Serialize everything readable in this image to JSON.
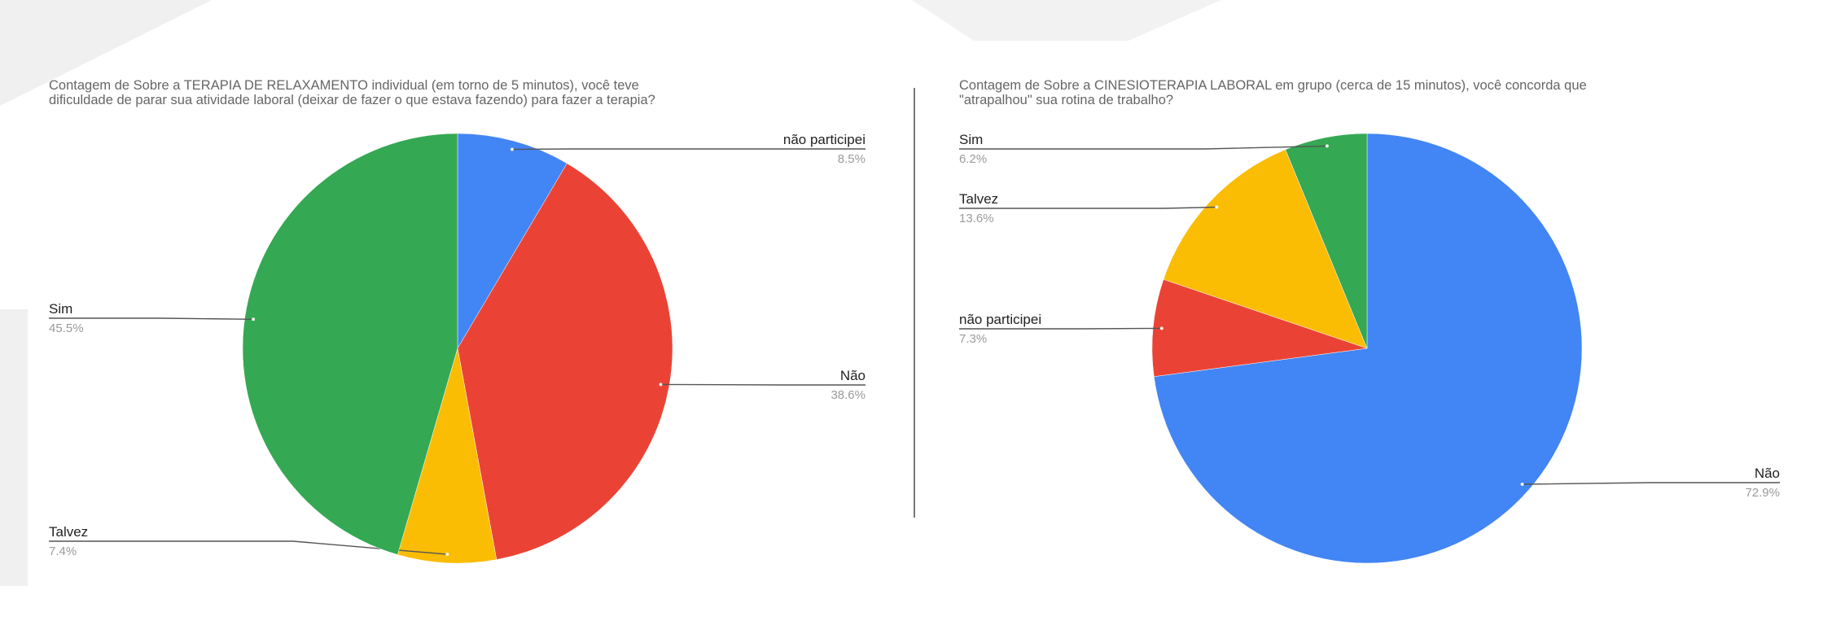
{
  "chart_data": [
    {
      "type": "pie",
      "title": "Contagem de Sobre a TERAPIA DE RELAXAMENTO individual (em torno de 5 minutos), você teve dificuldade de parar sua atividade laboral (deixar de fazer o que estava fazendo) para fazer a terapia?",
      "title_lines": [
        "Contagem de Sobre a TERAPIA DE RELAXAMENTO individual (em torno de 5 minutos), você teve",
        "dificuldade de parar sua atividade laboral (deixar de fazer o que estava fazendo) para fazer a terapia?"
      ],
      "slices": [
        {
          "label": "não participei",
          "value": 8.5,
          "percent_label": "8.5%",
          "color": "#4285f4"
        },
        {
          "label": "Não",
          "value": 38.6,
          "percent_label": "38.6%",
          "color": "#ea4335"
        },
        {
          "label": "Talvez",
          "value": 7.4,
          "percent_label": "7.4%",
          "color": "#fbbc04"
        },
        {
          "label": "Sim",
          "value": 45.5,
          "percent_label": "45.5%",
          "color": "#34a853"
        }
      ]
    },
    {
      "type": "pie",
      "title": "Contagem de Sobre a CINESIOTERAPIA LABORAL em grupo (cerca de 15 minutos), você concorda que \"atrapalhou\" sua rotina de trabalho?",
      "title_lines": [
        "Contagem de Sobre a CINESIOTERAPIA LABORAL em grupo (cerca de 15 minutos), você concorda que",
        "\"atrapalhou\" sua rotina de trabalho?"
      ],
      "slices": [
        {
          "label": "Não",
          "value": 72.9,
          "percent_label": "72.9%",
          "color": "#4285f4"
        },
        {
          "label": "não participei",
          "value": 7.3,
          "percent_label": "7.3%",
          "color": "#ea4335"
        },
        {
          "label": "Talvez",
          "value": 13.6,
          "percent_label": "13.6%",
          "color": "#fbbc04"
        },
        {
          "label": "Sim",
          "value": 6.2,
          "percent_label": "6.2%",
          "color": "#34a853"
        }
      ]
    }
  ]
}
